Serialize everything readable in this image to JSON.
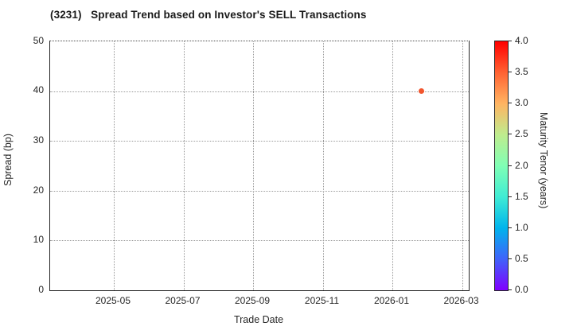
{
  "figure": {
    "background": "#ffffff",
    "text_color": "#262626",
    "gridline_color": "#9a9a9a",
    "spine_color": "#262626"
  },
  "chart_data": {
    "type": "scatter",
    "title": "(3231)   Spread Trend based on Investor's SELL Transactions",
    "xlabel": "Trade Date",
    "ylabel": "Spread (bp)",
    "ylim": [
      0,
      50
    ],
    "ytick_labels": [
      "0",
      "10",
      "20",
      "30",
      "40",
      "50"
    ],
    "xtick_labels": [
      "2025-05",
      "2025-07",
      "2025-09",
      "2025-11",
      "2026-01",
      "2026-03"
    ],
    "xlim": [
      "2025-03-06",
      "2026-03-09"
    ],
    "grid": true,
    "grid_style": "dotted",
    "legend": "none",
    "points": [
      {
        "trade_date": "2026-01-25",
        "spread_bp": 40,
        "maturity_tenor_years": 3.4,
        "color": "#f2562e"
      }
    ],
    "colorbar": {
      "label": "Maturity Tenor (years)",
      "min": 0.0,
      "max": 4.0,
      "tick_labels": [
        "4.0",
        "3.5",
        "3.0",
        "2.5",
        "2.0",
        "1.5",
        "1.0",
        "0.5",
        "0.0"
      ],
      "colormap": "rainbow",
      "gradient_top_to_bottom": [
        "#ff0000",
        "#ff6232",
        "#ffb462",
        "#bfec8e",
        "#80ffb5",
        "#40ecd4",
        "#00b4ec",
        "#4062fa",
        "#8000ff"
      ]
    }
  }
}
